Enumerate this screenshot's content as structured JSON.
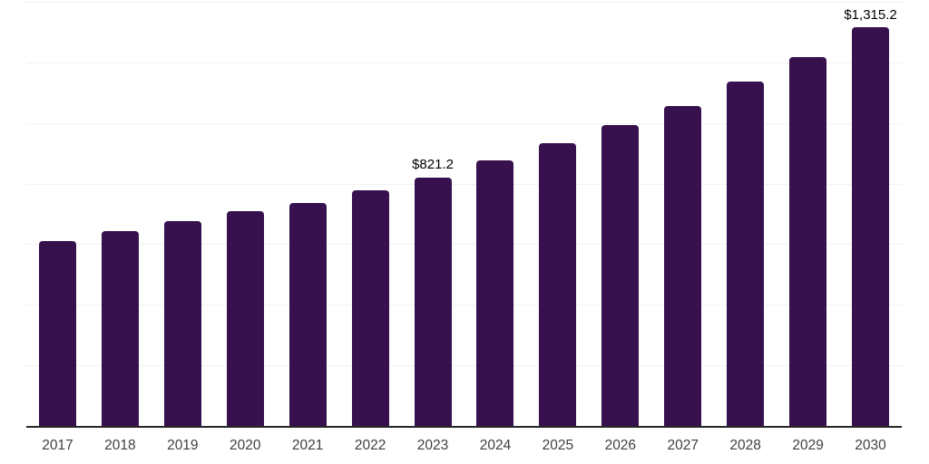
{
  "chart_data": {
    "type": "bar",
    "title": "",
    "xlabel": "",
    "ylabel": "",
    "categories": [
      "2017",
      "2018",
      "2019",
      "2020",
      "2021",
      "2022",
      "2023",
      "2024",
      "2025",
      "2026",
      "2027",
      "2028",
      "2029",
      "2030"
    ],
    "values": [
      611,
      644,
      677,
      710,
      735,
      779,
      821.2,
      878,
      933,
      994,
      1057,
      1136,
      1219,
      1315.2
    ],
    "labeled_points": [
      {
        "category": "2023",
        "label": "$821.2"
      },
      {
        "category": "2030",
        "label": "$1,315.2"
      }
    ],
    "ylim": [
      0,
      1400
    ],
    "gridline_interval": 200,
    "grid": true,
    "legend": "none",
    "colors": {
      "bar": "#36114E",
      "gridline": "#F2F2F2",
      "axis_line": "#262626",
      "data_label": "#000000",
      "tick_label": "#3F3F3F",
      "background": "#FFFFFF"
    }
  }
}
